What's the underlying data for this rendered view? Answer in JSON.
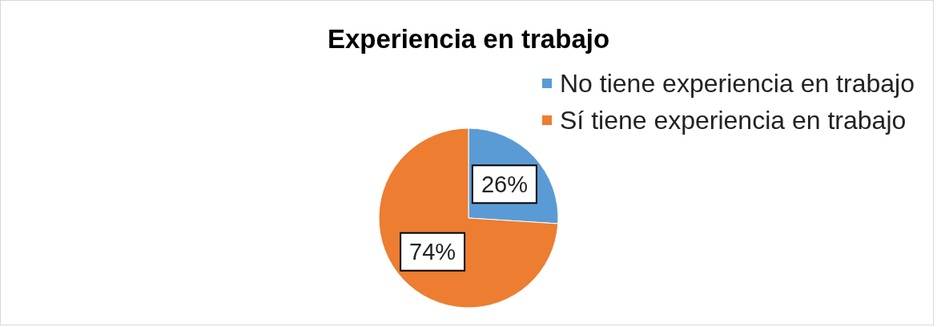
{
  "chart_data": {
    "type": "pie",
    "title": "Experiencia en trabajo",
    "categories": [
      "No tiene experiencia en trabajo",
      "Sí tiene experiencia en trabajo"
    ],
    "values": [
      26,
      74
    ],
    "colors": [
      "#5b9bd5",
      "#ed7d31"
    ],
    "value_labels": [
      "26%",
      "74%"
    ],
    "legend": "top right"
  }
}
